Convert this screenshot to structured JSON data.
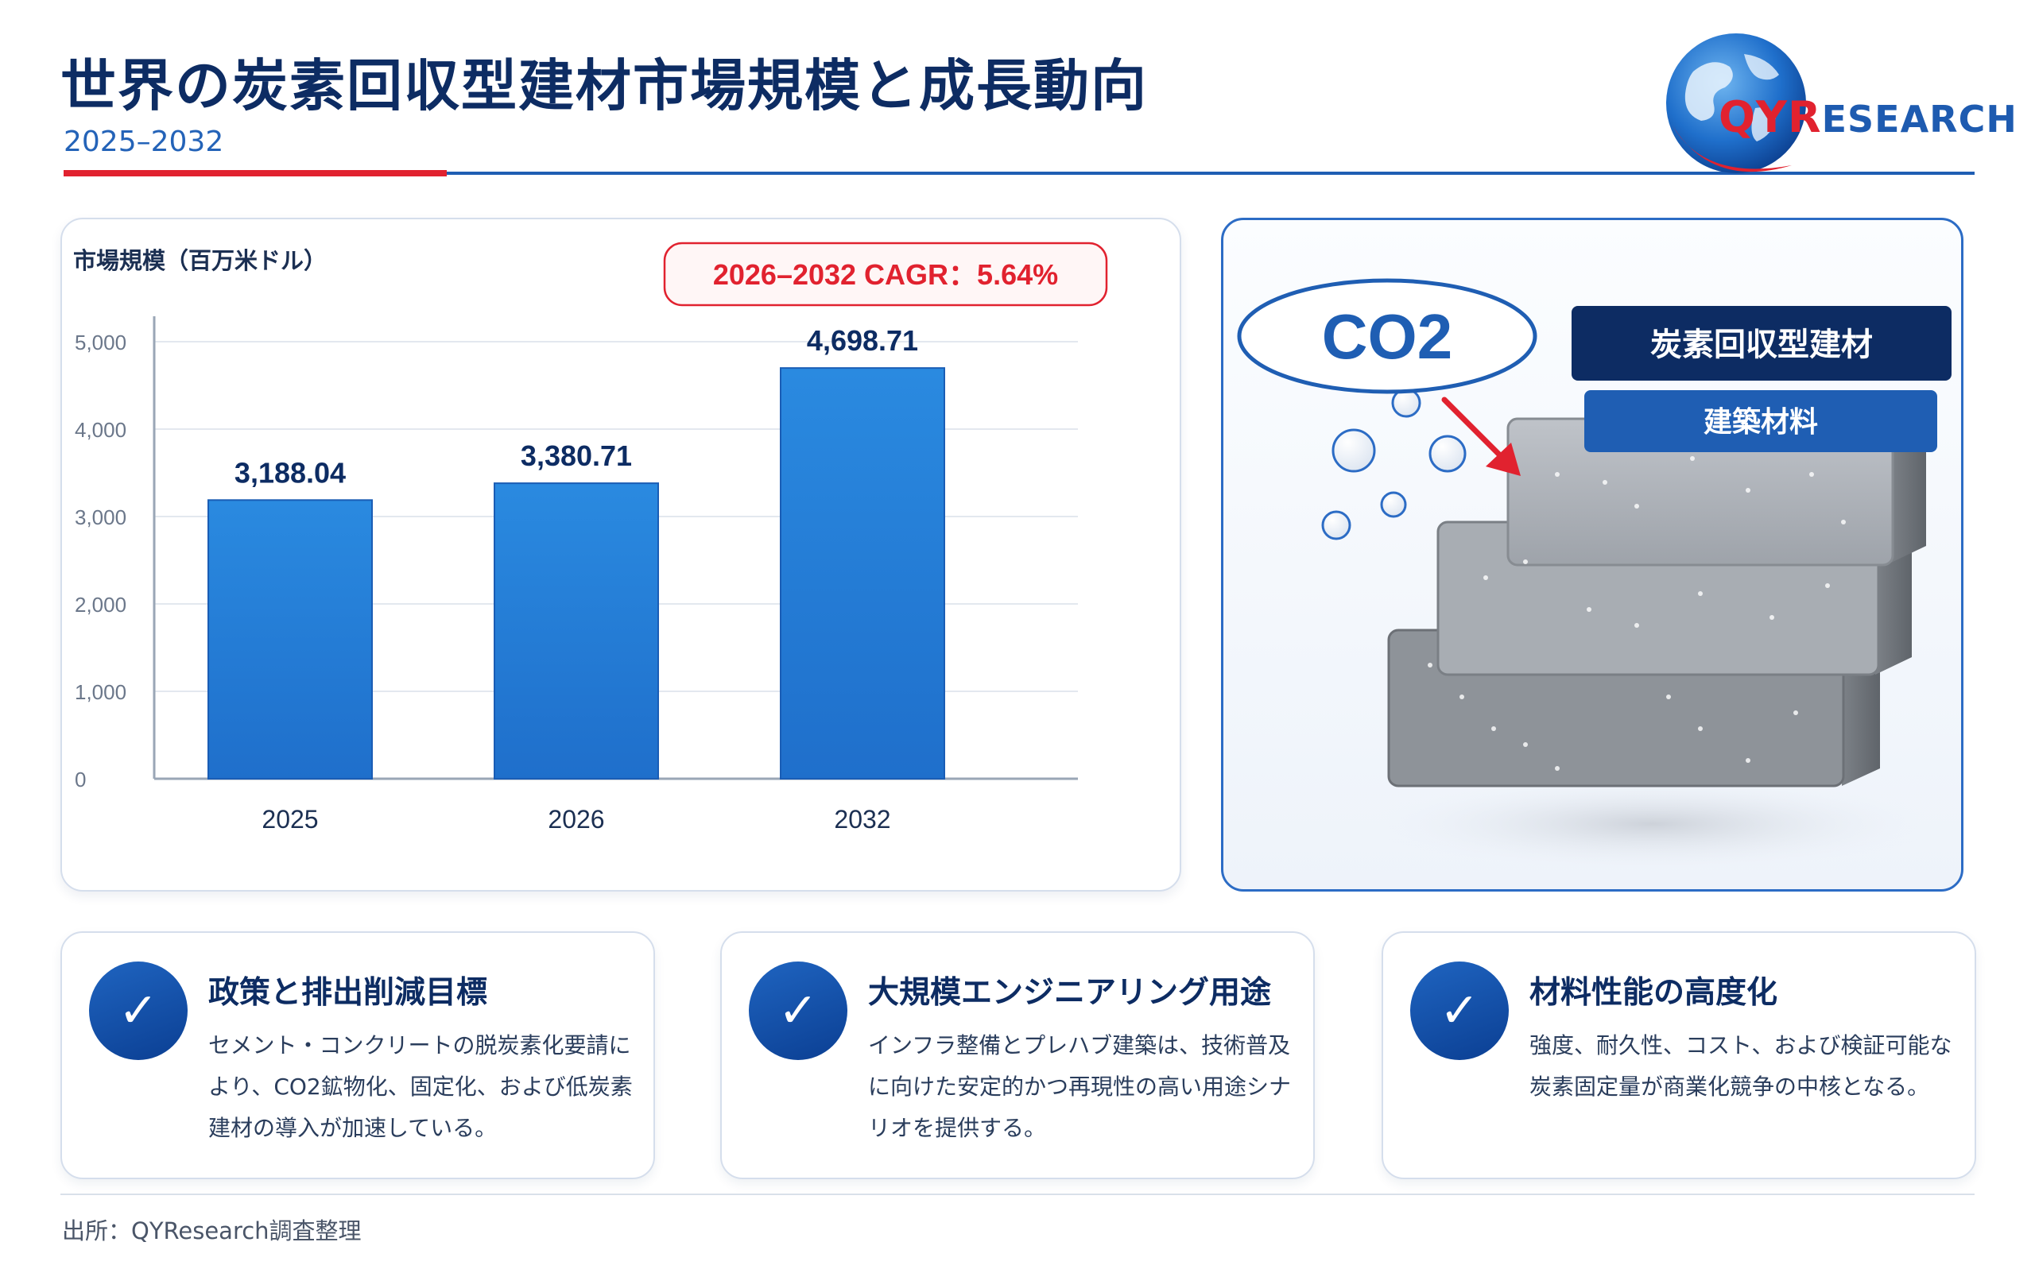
{
  "header": {
    "title": "世界の炭素回収型建材市場規模と成長動向",
    "period": "2025–2032"
  },
  "logo": {
    "brand_qy": "QYR",
    "brand_rest": "ESEARCH"
  },
  "chart_data": {
    "type": "bar",
    "ylabel": "市場規模（百万米ドル）",
    "categories": [
      "2025",
      "2026",
      "2032"
    ],
    "values": [
      3188.04,
      3380.71,
      4698.71
    ],
    "value_labels": [
      "3,188.04",
      "3,380.71",
      "4,698.71"
    ],
    "ylim": [
      0,
      5000
    ],
    "yticks": [
      "0",
      "1,000",
      "2,000",
      "3,000",
      "4,000",
      "5,000"
    ],
    "grid": true,
    "cagr_label": "2026–2032 CAGR：5.64%",
    "bar_color": "#1f6fcb",
    "cagr_color": "#e1222f"
  },
  "illustration": {
    "co2_label": "CO2",
    "tag_primary": "炭素回収型建材",
    "tag_secondary": "建築材料"
  },
  "features": [
    {
      "icon": "check-icon",
      "title": "政策と排出削減目標",
      "body": "セメント・コンクリートの脱炭素化要請により、CO2鉱物化、固定化、および低炭素建材の導入が加速している。"
    },
    {
      "icon": "check-icon",
      "title": "大規模エンジニアリング用途",
      "body": "インフラ整備とプレハブ建築は、技術普及に向けた安定的かつ再現性の高い用途シナリオを提供する。"
    },
    {
      "icon": "check-icon",
      "title": "材料性能の高度化",
      "body": "強度、耐久性、コスト、および検証可能な炭素固定量が商業化競争の中核となる。"
    }
  ],
  "footer": {
    "source": "出所：QYResearch調査整理"
  }
}
